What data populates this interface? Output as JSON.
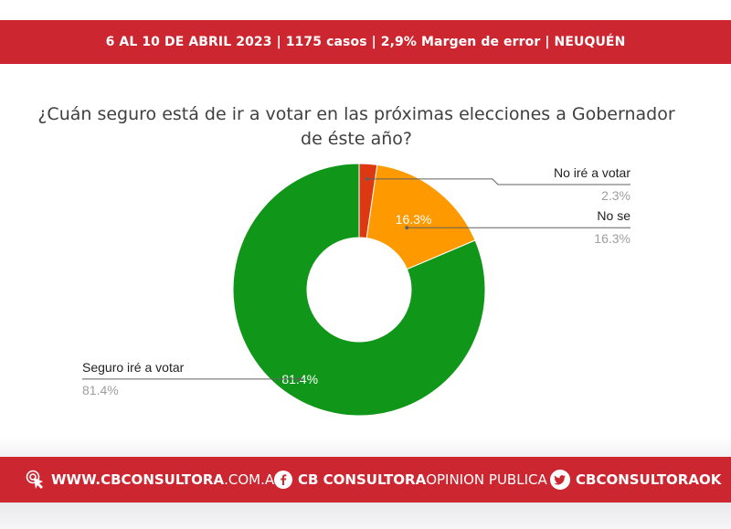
{
  "header": {
    "banner": "6 AL 10 DE ABRIL 2023 | 1175 casos  |  2,9% Margen de error  | NEUQUÉN"
  },
  "chart_data": {
    "type": "pie",
    "donut": true,
    "title": "¿Cuán seguro está de ir a votar en las próximas elecciones a Gobernador de éste año?",
    "categories": [
      "No iré a votar",
      "No se",
      "Seguro iré a votar"
    ],
    "values": [
      2.3,
      16.3,
      81.4
    ],
    "value_labels": [
      "2.3%",
      "16.3%",
      "81.4%"
    ],
    "colors": [
      "#dc3912",
      "#ff9900",
      "#109618"
    ]
  },
  "footer": {
    "web_bold": "WWW.CBCONSULTORA",
    "web_thin": ".COM.AR",
    "facebook_bold": "CB CONSULTORA",
    "facebook_thin": " OPINION PUBLICA",
    "twitter": "CBCONSULTORAOK",
    "icons": [
      "cursor-click-icon",
      "facebook-icon",
      "twitter-icon"
    ]
  }
}
